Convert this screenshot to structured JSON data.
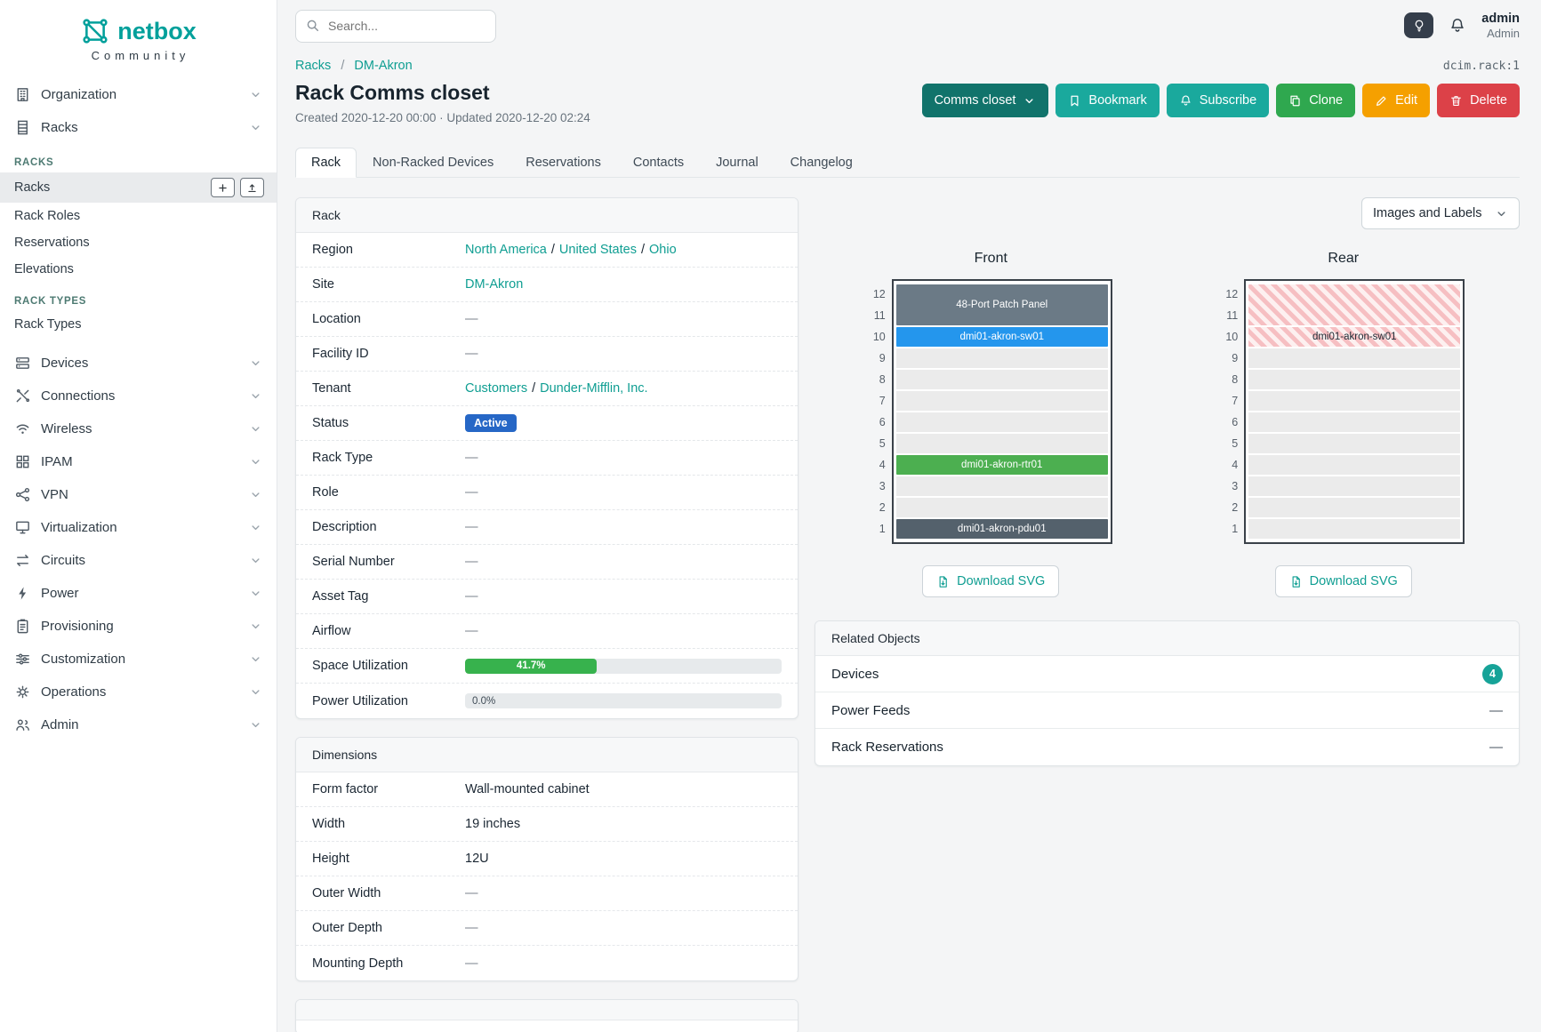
{
  "brand": {
    "name": "netbox",
    "subtitle": "Community"
  },
  "topbar": {
    "search_placeholder": "Search...",
    "user_name": "admin",
    "user_role": "Admin"
  },
  "sidebar": {
    "top_items": [
      {
        "label": "Organization",
        "icon": "organization-icon"
      },
      {
        "label": "Racks",
        "icon": "racks-icon"
      }
    ],
    "rack_sections": [
      {
        "heading": "RACKS",
        "items": [
          {
            "label": "Racks",
            "active": true,
            "actions": [
              "add",
              "import"
            ]
          },
          {
            "label": "Rack Roles"
          },
          {
            "label": "Reservations"
          },
          {
            "label": "Elevations"
          }
        ]
      },
      {
        "heading": "RACK TYPES",
        "items": [
          {
            "label": "Rack Types"
          }
        ]
      }
    ],
    "bottom_items": [
      {
        "label": "Devices",
        "icon": "devices-icon"
      },
      {
        "label": "Connections",
        "icon": "connections-icon"
      },
      {
        "label": "Wireless",
        "icon": "wireless-icon"
      },
      {
        "label": "IPAM",
        "icon": "ipam-icon"
      },
      {
        "label": "VPN",
        "icon": "vpn-icon"
      },
      {
        "label": "Virtualization",
        "icon": "virtualization-icon"
      },
      {
        "label": "Circuits",
        "icon": "circuits-icon"
      },
      {
        "label": "Power",
        "icon": "power-icon"
      },
      {
        "label": "Provisioning",
        "icon": "provisioning-icon"
      },
      {
        "label": "Customization",
        "icon": "customization-icon"
      },
      {
        "label": "Operations",
        "icon": "operations-icon"
      },
      {
        "label": "Admin",
        "icon": "admin-icon"
      }
    ]
  },
  "breadcrumb": {
    "items": [
      "Racks",
      "DM-Akron"
    ],
    "object_id": "dcim.rack:1"
  },
  "page": {
    "title": "Rack Comms closet",
    "meta": "Created 2020-12-20 00:00 · Updated 2020-12-20 02:24"
  },
  "actions": [
    {
      "label": "Comms closet",
      "icon": "chevron-down-icon",
      "style": "darkteal"
    },
    {
      "label": "Bookmark",
      "icon": "bookmark-icon",
      "style": "teal"
    },
    {
      "label": "Subscribe",
      "icon": "bell-icon",
      "style": "teal"
    },
    {
      "label": "Clone",
      "icon": "copy-icon",
      "style": "green"
    },
    {
      "label": "Edit",
      "icon": "pencil-icon",
      "style": "orange"
    },
    {
      "label": "Delete",
      "icon": "trash-icon",
      "style": "red"
    }
  ],
  "tabs": [
    {
      "label": "Rack",
      "active": true
    },
    {
      "label": "Non-Racked Devices"
    },
    {
      "label": "Reservations"
    },
    {
      "label": "Contacts"
    },
    {
      "label": "Journal"
    },
    {
      "label": "Changelog"
    }
  ],
  "rack_card": {
    "title": "Rack",
    "rows": [
      {
        "label": "Region",
        "type": "links",
        "links": [
          "North America",
          "United States",
          "Ohio"
        ]
      },
      {
        "label": "Site",
        "type": "links",
        "links": [
          "DM-Akron"
        ]
      },
      {
        "label": "Location",
        "type": "text",
        "value": "—"
      },
      {
        "label": "Facility ID",
        "type": "text",
        "value": "—"
      },
      {
        "label": "Tenant",
        "type": "links",
        "links": [
          "Customers",
          "Dunder-Mifflin, Inc."
        ]
      },
      {
        "label": "Status",
        "type": "badge",
        "value": "Active",
        "color": "#2667c6"
      },
      {
        "label": "Rack Type",
        "type": "text",
        "value": "—"
      },
      {
        "label": "Role",
        "type": "text",
        "value": "—"
      },
      {
        "label": "Description",
        "type": "text",
        "value": "—"
      },
      {
        "label": "Serial Number",
        "type": "text",
        "value": "—"
      },
      {
        "label": "Asset Tag",
        "type": "text",
        "value": "—"
      },
      {
        "label": "Airflow",
        "type": "text",
        "value": "—"
      },
      {
        "label": "Space Utilization",
        "type": "progress",
        "percent": 41.7,
        "display": "41.7%",
        "color": "#37b24d"
      },
      {
        "label": "Power Utilization",
        "type": "progress",
        "percent": 0.0,
        "display": "0.0%",
        "color": "#37b24d"
      }
    ]
  },
  "dimensions_card": {
    "title": "Dimensions",
    "rows": [
      {
        "label": "Form factor",
        "value": "Wall-mounted cabinet"
      },
      {
        "label": "Width",
        "value": "19 inches"
      },
      {
        "label": "Height",
        "value": "12U"
      },
      {
        "label": "Outer Width",
        "value": "—"
      },
      {
        "label": "Outer Depth",
        "value": "—"
      },
      {
        "label": "Mounting Depth",
        "value": "—"
      }
    ]
  },
  "elevation": {
    "images_labels_select": "Images and Labels",
    "download_label": "Download SVG",
    "total_units": 12,
    "views": [
      {
        "title": "Front",
        "devices": [
          {
            "top_unit": 12,
            "span": 2,
            "label": "48-Port Patch Panel",
            "bg": "#6b7a86",
            "fg": "#ffffff",
            "striped": false
          },
          {
            "top_unit": 10,
            "span": 1,
            "label": "dmi01-akron-sw01",
            "bg": "#2496ed",
            "fg": "#ffffff",
            "striped": false
          },
          {
            "top_unit": 4,
            "span": 1,
            "label": "dmi01-akron-rtr01",
            "bg": "#4caf50",
            "fg": "#ffffff",
            "striped": false
          },
          {
            "top_unit": 1,
            "span": 1,
            "label": "dmi01-akron-pdu01",
            "bg": "#54616c",
            "fg": "#ffffff",
            "striped": false
          }
        ]
      },
      {
        "title": "Rear",
        "devices": [
          {
            "top_unit": 12,
            "span": 2,
            "label": "",
            "striped": true
          },
          {
            "top_unit": 10,
            "span": 1,
            "label": "dmi01-akron-sw01",
            "fg": "#212b35",
            "striped": true
          }
        ]
      }
    ]
  },
  "related_objects": {
    "title": "Related Objects",
    "rows": [
      {
        "label": "Devices",
        "badge": "4"
      },
      {
        "label": "Power Feeds",
        "value": "—"
      },
      {
        "label": "Rack Reservations",
        "value": "—"
      }
    ]
  }
}
